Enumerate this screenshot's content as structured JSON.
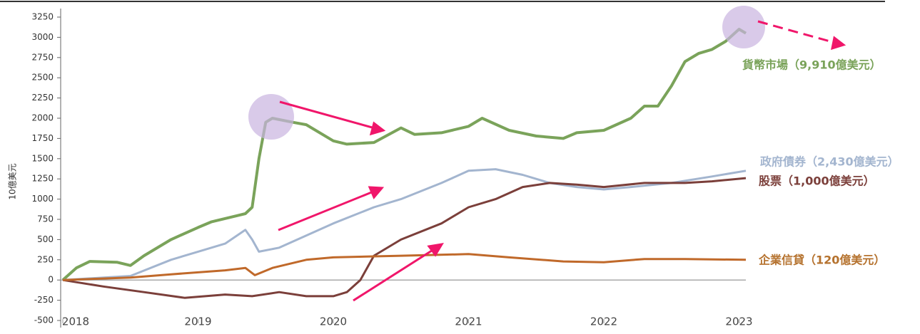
{
  "chart_data": {
    "type": "line",
    "y_label": "10億美元",
    "xlim": [
      2018,
      2023.05
    ],
    "xticks": [
      2018,
      2019,
      2020,
      2021,
      2022,
      2023
    ],
    "ylim": [
      -500,
      3250
    ],
    "yticks": [
      -500,
      -250,
      0,
      250,
      500,
      750,
      1000,
      1250,
      1500,
      1750,
      2000,
      2250,
      2500,
      2750,
      3000,
      3250
    ],
    "series": [
      {
        "name": "貨幣市場（9,910億美元）",
        "color": "#7aa35a",
        "x": [
          2018,
          2018.1,
          2018.2,
          2018.4,
          2018.5,
          2018.6,
          2018.8,
          2019,
          2019.1,
          2019.3,
          2019.35,
          2019.4,
          2019.45,
          2019.5,
          2019.55,
          2019.7,
          2019.8,
          2020,
          2020.1,
          2020.3,
          2020.5,
          2020.6,
          2020.8,
          2021,
          2021.1,
          2021.3,
          2021.5,
          2021.7,
          2021.8,
          2022,
          2022.2,
          2022.3,
          2022.4,
          2022.5,
          2022.6,
          2022.7,
          2022.8,
          2022.9,
          2023,
          2023.05
        ],
        "values": [
          0,
          150,
          230,
          220,
          180,
          300,
          500,
          650,
          720,
          800,
          820,
          900,
          1500,
          1950,
          2000,
          1950,
          1920,
          1720,
          1680,
          1700,
          1880,
          1800,
          1820,
          1900,
          2000,
          1850,
          1780,
          1750,
          1820,
          1850,
          2000,
          2150,
          2150,
          2400,
          2700,
          2800,
          2850,
          2950,
          3100,
          3050
        ]
      },
      {
        "name": "政府債券（2,430億美元）",
        "color": "#a3b5cf",
        "x": [
          2018,
          2018.5,
          2018.8,
          2019,
          2019.2,
          2019.35,
          2019.4,
          2019.45,
          2019.6,
          2019.8,
          2020,
          2020.3,
          2020.5,
          2020.8,
          2021,
          2021.2,
          2021.4,
          2021.6,
          2021.8,
          2022,
          2022.2,
          2022.5,
          2022.8,
          2023.05
        ],
        "values": [
          0,
          50,
          250,
          350,
          450,
          620,
          500,
          350,
          400,
          550,
          700,
          900,
          1000,
          1200,
          1350,
          1370,
          1300,
          1200,
          1150,
          1120,
          1150,
          1200,
          1280,
          1350
        ]
      },
      {
        "name": "股票（1,000億美元）",
        "color": "#7b3f3a",
        "x": [
          2018,
          2018.3,
          2018.6,
          2018.9,
          2019.2,
          2019.4,
          2019.6,
          2019.8,
          2020,
          2020.1,
          2020.2,
          2020.3,
          2020.5,
          2020.8,
          2021,
          2021.2,
          2021.4,
          2021.6,
          2021.8,
          2022,
          2022.3,
          2022.6,
          2022.8,
          2023.05
        ],
        "values": [
          0,
          -80,
          -150,
          -220,
          -180,
          -200,
          -150,
          -200,
          -200,
          -150,
          0,
          300,
          500,
          700,
          900,
          1000,
          1150,
          1200,
          1180,
          1150,
          1200,
          1200,
          1220,
          1260
        ]
      },
      {
        "name": "企業信貸（120億美元）",
        "color": "#c0692a",
        "x": [
          2018,
          2018.5,
          2018.8,
          2019.2,
          2019.35,
          2019.42,
          2019.55,
          2019.8,
          2020,
          2020.5,
          2021,
          2021.3,
          2021.7,
          2022,
          2022.3,
          2022.6,
          2023.05
        ],
        "values": [
          0,
          30,
          70,
          120,
          150,
          60,
          150,
          250,
          280,
          300,
          320,
          280,
          230,
          220,
          260,
          260,
          250
        ]
      }
    ]
  }
}
